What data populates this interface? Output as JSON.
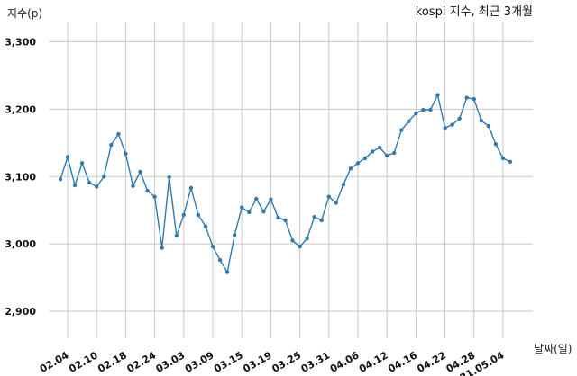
{
  "chart_data": {
    "type": "line",
    "title": "kospi 지수, 최근 3개월",
    "xlabel": "날짜(일)",
    "ylabel": "지수(p)",
    "ylim": [
      2860,
      3330
    ],
    "yticks": [
      2900,
      3000,
      3100,
      3200,
      3300
    ],
    "ytick_labels": [
      "2,900",
      "3,000",
      "3,100",
      "3,200",
      "3,300"
    ],
    "xtick_labels": [
      "02.04",
      "02.10",
      "02.18",
      "02.24",
      "03.03",
      "03.09",
      "03.15",
      "03.19",
      "03.25",
      "03.31",
      "04.06",
      "04.12",
      "04.16",
      "04.22",
      "04.28",
      "21.05.04"
    ],
    "grid": true,
    "line_color": "#2f7bb0",
    "series": [
      {
        "values": [
          3096,
          3129,
          3087,
          3120,
          3091,
          3085,
          3100,
          3147,
          3163,
          3134,
          3086,
          3107,
          3079,
          3070,
          2994,
          3099,
          3012,
          3043,
          3083,
          3043,
          3026,
          2996,
          2976,
          2958,
          3013,
          3054,
          3047,
          3067,
          3048,
          3066,
          3039,
          3035,
          3005,
          2996,
          3008,
          3040,
          3035,
          3070,
          3061,
          3088,
          3112,
          3120,
          3127,
          3137,
          3143,
          3131,
          3135,
          3169,
          3182,
          3194,
          3199,
          3199,
          3221,
          3172,
          3177,
          3186,
          3217,
          3215,
          3183,
          3175,
          3148,
          3127,
          3122
        ]
      }
    ]
  }
}
